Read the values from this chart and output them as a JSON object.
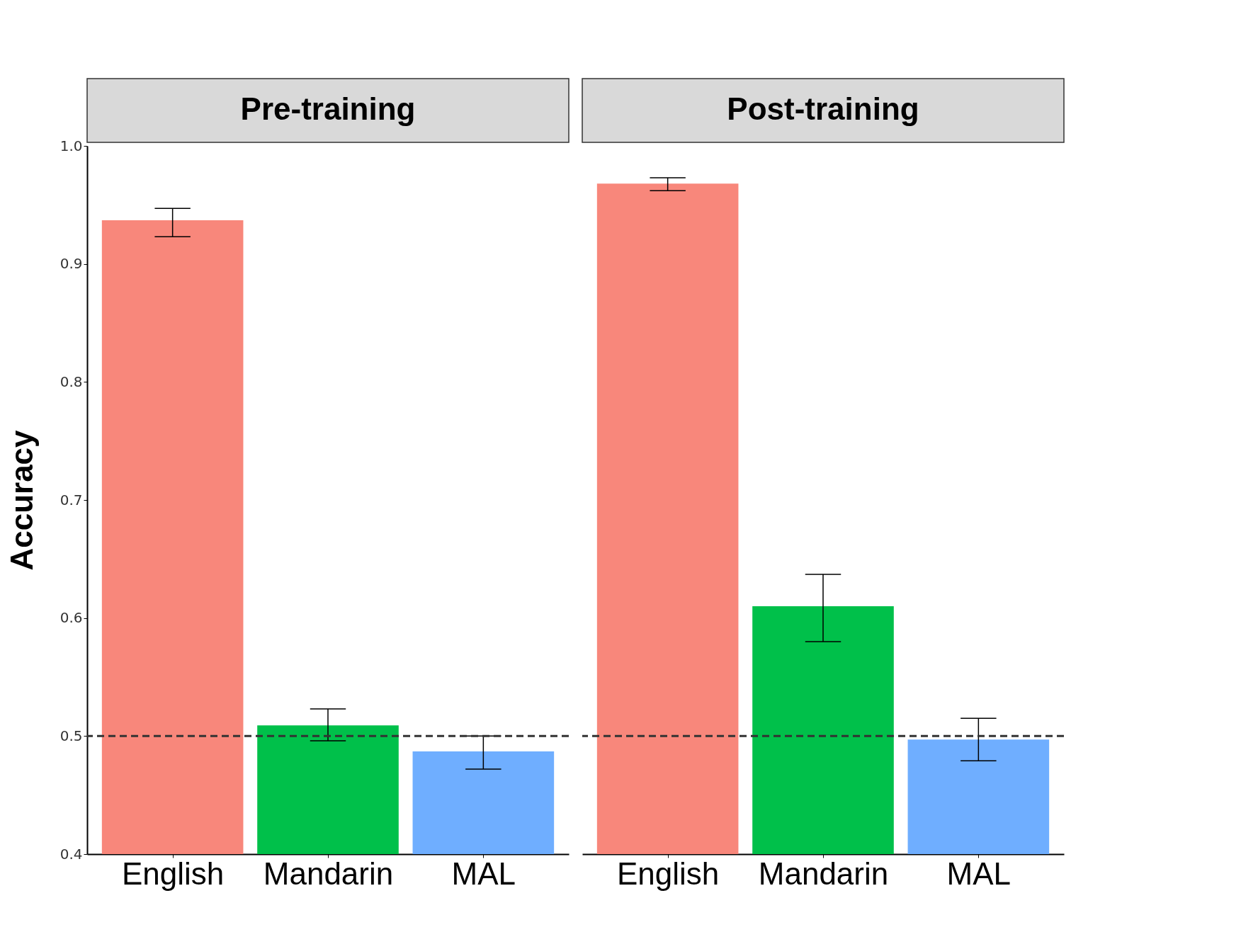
{
  "chart_data": [
    {
      "type": "bar",
      "title": "Pre-training",
      "ylabel": "Accuracy",
      "categories": [
        "English",
        "Mandarin",
        "MAL"
      ],
      "values": [
        0.937,
        0.509,
        0.487
      ],
      "colors": [
        "#f8877b",
        "#00c04a",
        "#6faeff"
      ],
      "errors": [
        [
          0.923,
          0.947
        ],
        [
          0.496,
          0.523
        ],
        [
          0.472,
          0.5
        ]
      ],
      "ylim": [
        0.4,
        1.0
      ],
      "yticks": [
        0.4,
        0.5,
        0.6,
        0.7,
        0.8,
        0.9,
        {
          "value": 1.0,
          "label": "1.0"
        }
      ],
      "grid": false,
      "ref_lines": [
        {
          "axis": "y",
          "value": 0.5,
          "color": "#333333",
          "line_style": "dashed"
        }
      ]
    },
    {
      "type": "bar",
      "title": "Post-training",
      "categories": [
        "English",
        "Mandarin",
        "MAL"
      ],
      "values": [
        0.968,
        0.61,
        0.497
      ],
      "colors": [
        "#f8877b",
        "#00c04a",
        "#6faeff"
      ],
      "errors": [
        [
          0.962,
          0.973
        ],
        [
          0.58,
          0.637
        ],
        [
          0.479,
          0.515
        ]
      ],
      "ylim": [
        0.4,
        1.0
      ],
      "tick_labels": "x",
      "grid": false,
      "ref_lines": [
        {
          "axis": "y",
          "value": 0.5,
          "color": "#333333",
          "line_style": "dashed"
        }
      ]
    }
  ]
}
